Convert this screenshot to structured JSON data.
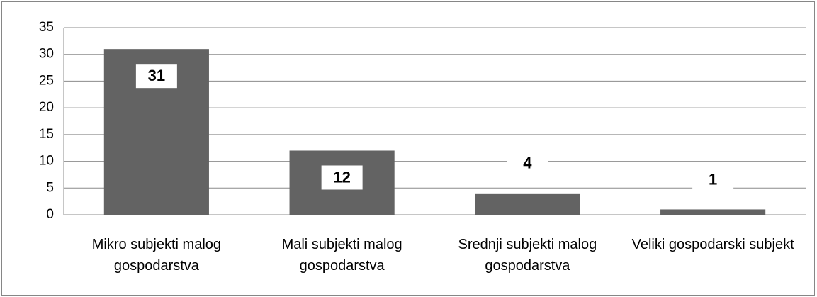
{
  "chart_data": {
    "type": "bar",
    "categories": [
      "Mikro subjekti malog gospodarstva",
      "Mali subjekti malog gospodarstva",
      "Srednji subjekti malog gospodarstva",
      "Veliki gospodarski subjekt"
    ],
    "values": [
      31,
      12,
      4,
      1
    ],
    "color": "#636363",
    "ylim": [
      0,
      35
    ],
    "yticks": [
      0,
      5,
      10,
      15,
      20,
      25,
      30,
      35
    ],
    "grid": true,
    "data_labels": true
  }
}
